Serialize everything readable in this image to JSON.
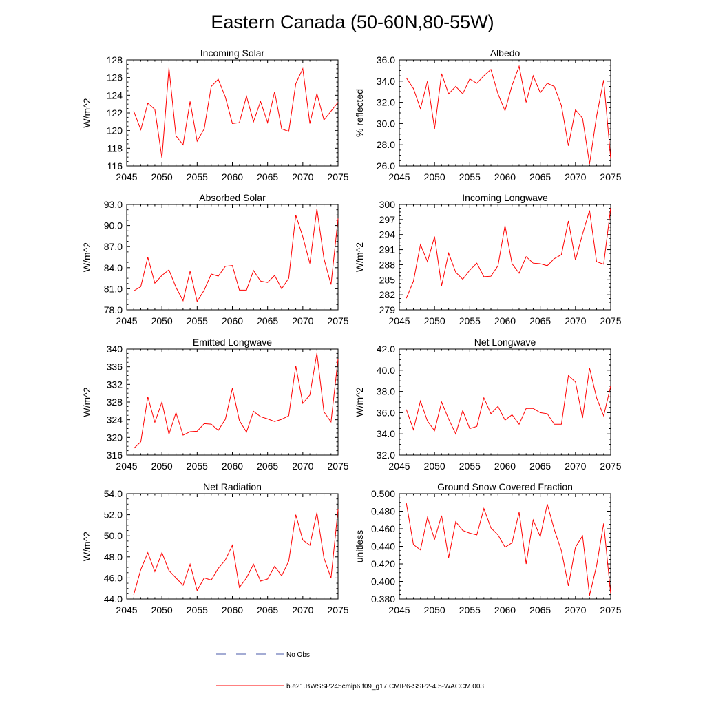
{
  "title": "Eastern Canada (50-60N,80-55W)",
  "legend": {
    "items": [
      {
        "label": "No Obs",
        "color": "#4a5aa8",
        "style": "dashed"
      },
      {
        "label": "b.e21.BWSSP245cmip6.f09_g17.CMIP6-SSP2-4.5-WACCM.003",
        "color": "#ff0000",
        "style": "solid"
      }
    ]
  },
  "chart_data": [
    {
      "type": "line",
      "title": "Incoming Solar",
      "ylabel": "W/m^2",
      "xlim": [
        2045,
        2075
      ],
      "ylim": [
        116,
        128
      ],
      "xticks": [
        "2045",
        "2050",
        "2055",
        "2060",
        "2065",
        "2070",
        "2075"
      ],
      "yticks": [
        "116",
        "118",
        "120",
        "122",
        "124",
        "126",
        "128"
      ],
      "series": [
        {
          "color": "#ff0000",
          "x": [
            2046,
            2047,
            2048,
            2049,
            2050,
            2051,
            2052,
            2053,
            2054,
            2055,
            2056,
            2057,
            2058,
            2059,
            2060,
            2061,
            2062,
            2063,
            2064,
            2065,
            2066,
            2067,
            2068,
            2069,
            2070,
            2071,
            2072,
            2073,
            2074,
            2075
          ],
          "values": [
            122.2,
            120.1,
            123.1,
            122.4,
            116.9,
            127.1,
            119.4,
            118.4,
            123.3,
            118.8,
            120.2,
            125.0,
            125.8,
            123.8,
            120.8,
            120.9,
            123.9,
            121.0,
            123.3,
            120.9,
            124.4,
            120.2,
            119.9,
            125.3,
            127.0,
            120.8,
            124.2,
            121.2,
            122.2,
            123.2
          ]
        }
      ]
    },
    {
      "type": "line",
      "title": "Albedo",
      "ylabel": "% reflected",
      "xlim": [
        2045,
        2075
      ],
      "ylim": [
        26,
        36
      ],
      "xticks": [
        "2045",
        "2050",
        "2055",
        "2060",
        "2065",
        "2070",
        "2075"
      ],
      "yticks": [
        "26.0",
        "28.0",
        "30.0",
        "32.0",
        "34.0",
        "36.0"
      ],
      "series": [
        {
          "color": "#ff0000",
          "x": [
            2046,
            2047,
            2048,
            2049,
            2050,
            2051,
            2052,
            2053,
            2054,
            2055,
            2056,
            2057,
            2058,
            2059,
            2060,
            2061,
            2062,
            2063,
            2064,
            2065,
            2066,
            2067,
            2068,
            2069,
            2070,
            2071,
            2072,
            2073,
            2074,
            2075
          ],
          "values": [
            34.3,
            33.3,
            31.4,
            34.0,
            29.5,
            34.7,
            32.8,
            33.5,
            32.8,
            34.2,
            33.8,
            34.5,
            35.1,
            32.8,
            31.2,
            33.6,
            35.4,
            32.0,
            34.5,
            32.9,
            33.8,
            33.5,
            31.7,
            27.9,
            31.3,
            30.5,
            26.2,
            30.7,
            34.1,
            26.7
          ]
        }
      ]
    },
    {
      "type": "line",
      "title": "Absorbed Solar",
      "ylabel": "W/m^2",
      "xlim": [
        2045,
        2075
      ],
      "ylim": [
        78,
        93
      ],
      "xticks": [
        "2045",
        "2050",
        "2055",
        "2060",
        "2065",
        "2070",
        "2075"
      ],
      "yticks": [
        "78.0",
        "81.0",
        "84.0",
        "87.0",
        "90.0",
        "93.0"
      ],
      "series": [
        {
          "color": "#ff0000",
          "x": [
            2046,
            2047,
            2048,
            2049,
            2050,
            2051,
            2052,
            2053,
            2054,
            2055,
            2056,
            2057,
            2058,
            2059,
            2060,
            2061,
            2062,
            2063,
            2064,
            2065,
            2066,
            2067,
            2068,
            2069,
            2070,
            2071,
            2072,
            2073,
            2074,
            2075
          ],
          "values": [
            80.7,
            81.3,
            85.5,
            81.8,
            82.9,
            83.7,
            81.2,
            79.3,
            83.5,
            79.2,
            80.8,
            83.1,
            82.8,
            84.2,
            84.3,
            80.8,
            80.8,
            83.6,
            82.1,
            81.9,
            82.9,
            81.0,
            82.5,
            91.5,
            88.4,
            84.6,
            92.4,
            85.3,
            81.6,
            91.0
          ]
        }
      ]
    },
    {
      "type": "line",
      "title": "Incoming Longwave",
      "ylabel": "W/m^2",
      "xlim": [
        2045,
        2075
      ],
      "ylim": [
        279,
        300
      ],
      "xticks": [
        "2045",
        "2050",
        "2055",
        "2060",
        "2065",
        "2070",
        "2075"
      ],
      "yticks": [
        "279",
        "282",
        "285",
        "288",
        "291",
        "294",
        "297",
        "300"
      ],
      "series": [
        {
          "color": "#ff0000",
          "x": [
            2046,
            2047,
            2048,
            2049,
            2050,
            2051,
            2052,
            2053,
            2054,
            2055,
            2056,
            2057,
            2058,
            2059,
            2060,
            2061,
            2062,
            2063,
            2064,
            2065,
            2066,
            2067,
            2068,
            2069,
            2070,
            2071,
            2072,
            2073,
            2074,
            2075
          ],
          "values": [
            281.3,
            284.7,
            292.0,
            288.6,
            293.6,
            283.8,
            290.3,
            286.5,
            285.1,
            286.9,
            288.3,
            285.6,
            285.7,
            287.8,
            295.8,
            288.2,
            286.3,
            289.6,
            288.3,
            288.2,
            287.8,
            289.2,
            290.0,
            296.7,
            288.9,
            294.1,
            298.8,
            288.6,
            288.1,
            299.3
          ]
        }
      ]
    },
    {
      "type": "line",
      "title": "Emitted Longwave",
      "ylabel": "W/m^2",
      "xlim": [
        2045,
        2075
      ],
      "ylim": [
        316,
        340
      ],
      "xticks": [
        "2045",
        "2050",
        "2055",
        "2060",
        "2065",
        "2070",
        "2075"
      ],
      "yticks": [
        "316",
        "320",
        "324",
        "328",
        "332",
        "336",
        "340"
      ],
      "series": [
        {
          "color": "#ff0000",
          "x": [
            2046,
            2047,
            2048,
            2049,
            2050,
            2051,
            2052,
            2053,
            2054,
            2055,
            2056,
            2057,
            2058,
            2059,
            2060,
            2061,
            2062,
            2063,
            2064,
            2065,
            2066,
            2067,
            2068,
            2069,
            2070,
            2071,
            2072,
            2073,
            2074,
            2075
          ],
          "values": [
            317.5,
            319.0,
            329.2,
            323.4,
            328.0,
            320.7,
            325.6,
            320.5,
            321.3,
            321.4,
            323.1,
            323.0,
            321.6,
            324.1,
            331.1,
            323.8,
            321.2,
            325.9,
            324.7,
            324.2,
            323.6,
            324.1,
            324.9,
            336.2,
            327.7,
            329.6,
            339.1,
            325.8,
            323.5,
            337.8
          ]
        }
      ]
    },
    {
      "type": "line",
      "title": "Net Longwave",
      "ylabel": "W/m^2",
      "xlim": [
        2045,
        2075
      ],
      "ylim": [
        32,
        42
      ],
      "xticks": [
        "2045",
        "2050",
        "2055",
        "2060",
        "2065",
        "2070",
        "2075"
      ],
      "yticks": [
        "32.0",
        "34.0",
        "36.0",
        "38.0",
        "40.0",
        "42.0"
      ],
      "series": [
        {
          "color": "#ff0000",
          "x": [
            2046,
            2047,
            2048,
            2049,
            2050,
            2051,
            2052,
            2053,
            2054,
            2055,
            2056,
            2057,
            2058,
            2059,
            2060,
            2061,
            2062,
            2063,
            2064,
            2065,
            2066,
            2067,
            2068,
            2069,
            2070,
            2071,
            2072,
            2073,
            2074,
            2075
          ],
          "values": [
            36.3,
            34.4,
            37.1,
            35.2,
            34.3,
            37.0,
            35.4,
            34.0,
            36.2,
            34.5,
            34.7,
            37.4,
            35.9,
            36.6,
            35.3,
            35.8,
            34.9,
            36.4,
            36.4,
            36.0,
            35.9,
            34.9,
            34.9,
            39.5,
            38.9,
            35.5,
            40.2,
            37.4,
            35.7,
            38.5
          ]
        }
      ]
    },
    {
      "type": "line",
      "title": "Net Radiation",
      "ylabel": "W/m^2",
      "xlim": [
        2045,
        2075
      ],
      "ylim": [
        44,
        54
      ],
      "xticks": [
        "2045",
        "2050",
        "2055",
        "2060",
        "2065",
        "2070",
        "2075"
      ],
      "yticks": [
        "44.0",
        "46.0",
        "48.0",
        "50.0",
        "52.0",
        "54.0"
      ],
      "series": [
        {
          "color": "#ff0000",
          "x": [
            2046,
            2047,
            2048,
            2049,
            2050,
            2051,
            2052,
            2053,
            2054,
            2055,
            2056,
            2057,
            2058,
            2059,
            2060,
            2061,
            2062,
            2063,
            2064,
            2065,
            2066,
            2067,
            2068,
            2069,
            2070,
            2071,
            2072,
            2073,
            2074,
            2075
          ],
          "values": [
            44.4,
            46.8,
            48.4,
            46.6,
            48.4,
            46.7,
            46.0,
            45.3,
            47.3,
            44.8,
            46.0,
            45.8,
            46.9,
            47.7,
            49.1,
            45.1,
            46.0,
            47.3,
            45.7,
            45.9,
            47.1,
            46.2,
            47.6,
            52.0,
            49.6,
            49.1,
            52.2,
            47.9,
            46.0,
            52.5
          ]
        }
      ]
    },
    {
      "type": "line",
      "title": "Ground Snow Covered Fraction",
      "ylabel": "unitless",
      "xlim": [
        2045,
        2075
      ],
      "ylim": [
        0.38,
        0.5
      ],
      "xticks": [
        "2045",
        "2050",
        "2055",
        "2060",
        "2065",
        "2070",
        "2075"
      ],
      "yticks": [
        "0.380",
        "0.400",
        "0.420",
        "0.440",
        "0.460",
        "0.480",
        "0.500"
      ],
      "series": [
        {
          "color": "#ff0000",
          "x": [
            2046,
            2047,
            2048,
            2049,
            2050,
            2051,
            2052,
            2053,
            2054,
            2055,
            2056,
            2057,
            2058,
            2059,
            2060,
            2061,
            2062,
            2063,
            2064,
            2065,
            2066,
            2067,
            2068,
            2069,
            2070,
            2071,
            2072,
            2073,
            2074,
            2075
          ],
          "values": [
            0.489,
            0.442,
            0.436,
            0.473,
            0.448,
            0.475,
            0.427,
            0.468,
            0.458,
            0.455,
            0.453,
            0.483,
            0.461,
            0.453,
            0.439,
            0.444,
            0.479,
            0.42,
            0.47,
            0.451,
            0.488,
            0.459,
            0.435,
            0.395,
            0.439,
            0.452,
            0.384,
            0.418,
            0.466,
            0.386
          ]
        }
      ]
    }
  ]
}
